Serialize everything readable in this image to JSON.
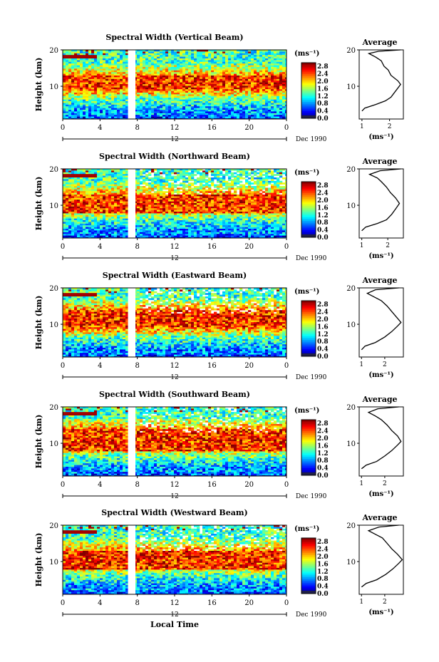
{
  "chart_data": [
    {
      "type": "heatmap",
      "title": "Spectral Width (Vertical Beam)",
      "ylabel": "Height (km)",
      "xlabel": "",
      "x_ticks": [
        "0",
        "4",
        "8",
        "12",
        "16",
        "20",
        "0"
      ],
      "date_marks": [
        "12",
        "Dec 1990"
      ],
      "y_ticks": [
        "10",
        "20"
      ],
      "xlim": [
        0,
        24
      ],
      "ylim": [
        1,
        20
      ],
      "data_gap": [
        7.0,
        7.8
      ],
      "colorbar": {
        "unit": "(ms⁻¹)",
        "ticks": [
          "0.0",
          "0.4",
          "0.8",
          "1.2",
          "1.6",
          "2.0",
          "2.4",
          "2.8"
        ],
        "range": [
          0,
          3.0
        ]
      },
      "average_profile": {
        "title": "Average",
        "xlabel": "(ms⁻¹)",
        "x_ticks": [
          "1",
          "2"
        ],
        "xlim": [
          0.9,
          2.5
        ],
        "y_ticks": [
          "10",
          "20"
        ],
        "points": [
          [
            1.0,
            3.2
          ],
          [
            1.1,
            4.0
          ],
          [
            1.5,
            5.0
          ],
          [
            1.85,
            6.0
          ],
          [
            2.05,
            7.0
          ],
          [
            2.15,
            8.0
          ],
          [
            2.25,
            9.0
          ],
          [
            2.4,
            10.5
          ],
          [
            2.3,
            11.5
          ],
          [
            2.05,
            13.0
          ],
          [
            1.95,
            14.5
          ],
          [
            1.8,
            15.5
          ],
          [
            1.7,
            17.0
          ],
          [
            1.5,
            18.0
          ],
          [
            1.25,
            19.0
          ],
          [
            1.6,
            19.6
          ],
          [
            2.4,
            20
          ]
        ]
      },
      "features": {
        "red_band_km": [
          9,
          13
        ],
        "red_top_km": [
          17.5,
          18.5
        ]
      }
    },
    {
      "type": "heatmap",
      "title": "Spectral Width (Northward Beam)",
      "ylabel": "Height (km)",
      "xlabel": "",
      "x_ticks": [
        "0",
        "4",
        "8",
        "12",
        "16",
        "20",
        "0"
      ],
      "date_marks": [
        "12",
        "Dec 1990"
      ],
      "y_ticks": [
        "10",
        "20"
      ],
      "xlim": [
        0,
        24
      ],
      "ylim": [
        1,
        20
      ],
      "data_gap": [
        7.0,
        7.8
      ],
      "colorbar": {
        "unit": "(ms⁻¹)",
        "ticks": [
          "0.0",
          "0.4",
          "0.8",
          "1.2",
          "1.6",
          "2.0",
          "2.4",
          "2.8"
        ],
        "range": [
          0,
          3.0
        ]
      },
      "average_profile": {
        "title": "Average",
        "xlabel": "(ms⁻¹)",
        "x_ticks": [
          "1",
          "2"
        ],
        "xlim": [
          0.9,
          2.6
        ],
        "y_ticks": [
          "10",
          "20"
        ],
        "points": [
          [
            1.0,
            3.0
          ],
          [
            1.15,
            4.0
          ],
          [
            1.6,
            5.0
          ],
          [
            1.95,
            6.0
          ],
          [
            2.15,
            7.5
          ],
          [
            2.3,
            9.0
          ],
          [
            2.45,
            10.5
          ],
          [
            2.3,
            12.0
          ],
          [
            2.1,
            13.5
          ],
          [
            1.95,
            15.0
          ],
          [
            1.75,
            16.5
          ],
          [
            1.6,
            17.5
          ],
          [
            1.3,
            18.5
          ],
          [
            1.7,
            19.5
          ],
          [
            2.5,
            20
          ]
        ]
      },
      "features": {
        "red_band_km": [
          8,
          13
        ],
        "red_top_km": [
          17.5,
          18.5
        ]
      }
    },
    {
      "type": "heatmap",
      "title": "Spectral Width (Eastward Beam)",
      "ylabel": "Height (km)",
      "xlabel": "",
      "x_ticks": [
        "0",
        "4",
        "8",
        "12",
        "16",
        "20",
        "0"
      ],
      "date_marks": [
        "12",
        "Dec 1990"
      ],
      "y_ticks": [
        "10",
        "20"
      ],
      "xlim": [
        0,
        24
      ],
      "ylim": [
        1,
        20
      ],
      "data_gap": [
        7.0,
        7.8
      ],
      "colorbar": {
        "unit": "(ms⁻¹)",
        "ticks": [
          "0.0",
          "0.4",
          "0.8",
          "1.2",
          "1.6",
          "2.0",
          "2.4",
          "2.8"
        ],
        "range": [
          0,
          3.0
        ]
      },
      "average_profile": {
        "title": "Average",
        "xlabel": "(ms⁻¹)",
        "x_ticks": [
          "1",
          "2"
        ],
        "xlim": [
          0.9,
          2.8
        ],
        "y_ticks": [
          "10",
          "20"
        ],
        "points": [
          [
            1.0,
            3.0
          ],
          [
            1.15,
            4.0
          ],
          [
            1.6,
            5.0
          ],
          [
            2.0,
            6.5
          ],
          [
            2.3,
            8.0
          ],
          [
            2.55,
            9.5
          ],
          [
            2.7,
            10.5
          ],
          [
            2.5,
            12.0
          ],
          [
            2.3,
            13.5
          ],
          [
            2.1,
            15.0
          ],
          [
            1.85,
            16.5
          ],
          [
            1.55,
            17.5
          ],
          [
            1.25,
            18.5
          ],
          [
            1.6,
            19.5
          ],
          [
            2.6,
            20
          ]
        ]
      },
      "features": {
        "red_band_km": [
          9,
          14
        ],
        "red_top_km": [
          17.5,
          18.5
        ]
      }
    },
    {
      "type": "heatmap",
      "title": "Spectral Width (Southward Beam)",
      "ylabel": "Height (km)",
      "xlabel": "",
      "x_ticks": [
        "0",
        "4",
        "8",
        "12",
        "16",
        "20",
        "0"
      ],
      "date_marks": [
        "12",
        "Dec 1990"
      ],
      "y_ticks": [
        "10",
        "20"
      ],
      "xlim": [
        0,
        24
      ],
      "ylim": [
        1,
        20
      ],
      "data_gap": [
        7.0,
        7.8
      ],
      "colorbar": {
        "unit": "(ms⁻¹)",
        "ticks": [
          "0.0",
          "0.4",
          "0.8",
          "1.2",
          "1.6",
          "2.0",
          "2.4",
          "2.8"
        ],
        "range": [
          0,
          3.0
        ]
      },
      "average_profile": {
        "title": "Average",
        "xlabel": "(ms⁻¹)",
        "x_ticks": [
          "1",
          "2"
        ],
        "xlim": [
          0.9,
          2.8
        ],
        "y_ticks": [
          "10",
          "20"
        ],
        "points": [
          [
            1.0,
            3.0
          ],
          [
            1.2,
            4.0
          ],
          [
            1.65,
            5.0
          ],
          [
            2.0,
            6.5
          ],
          [
            2.3,
            8.0
          ],
          [
            2.55,
            9.5
          ],
          [
            2.7,
            10.5
          ],
          [
            2.55,
            12.0
          ],
          [
            2.3,
            13.5
          ],
          [
            2.1,
            15.0
          ],
          [
            1.85,
            16.5
          ],
          [
            1.6,
            17.5
          ],
          [
            1.3,
            18.5
          ],
          [
            1.7,
            19.5
          ],
          [
            2.6,
            20
          ]
        ]
      },
      "features": {
        "red_band_km": [
          8,
          14
        ],
        "red_top_km": [
          17.5,
          18.5
        ]
      }
    },
    {
      "type": "heatmap",
      "title": "Spectral Width (Westward Beam)",
      "ylabel": "Height (km)",
      "xlabel": "Local Time",
      "x_ticks": [
        "0",
        "4",
        "8",
        "12",
        "16",
        "20",
        "0"
      ],
      "date_marks": [
        "12",
        "Dec 1990"
      ],
      "y_ticks": [
        "10",
        "20"
      ],
      "xlim": [
        0,
        24
      ],
      "ylim": [
        1,
        20
      ],
      "data_gap": [
        7.0,
        7.8
      ],
      "colorbar": {
        "unit": "(ms⁻¹)",
        "ticks": [
          "0.0",
          "0.4",
          "0.8",
          "1.2",
          "1.6",
          "2.0",
          "2.4",
          "2.8"
        ],
        "range": [
          0,
          3.0
        ]
      },
      "average_profile": {
        "title": "Average",
        "xlabel": "(ms⁻¹)",
        "x_ticks": [
          "1",
          "2"
        ],
        "xlim": [
          0.9,
          2.8
        ],
        "y_ticks": [
          "10",
          "20"
        ],
        "points": [
          [
            1.0,
            3.0
          ],
          [
            1.2,
            4.0
          ],
          [
            1.65,
            5.0
          ],
          [
            2.05,
            6.5
          ],
          [
            2.35,
            8.0
          ],
          [
            2.6,
            9.5
          ],
          [
            2.75,
            10.5
          ],
          [
            2.55,
            12.0
          ],
          [
            2.3,
            13.5
          ],
          [
            2.1,
            15.0
          ],
          [
            1.9,
            16.5
          ],
          [
            1.6,
            17.5
          ],
          [
            1.3,
            18.5
          ],
          [
            1.75,
            19.5
          ],
          [
            2.6,
            20
          ]
        ]
      },
      "features": {
        "red_band_km": [
          8,
          13
        ],
        "red_top_km": [
          17.5,
          18.5
        ]
      }
    }
  ]
}
